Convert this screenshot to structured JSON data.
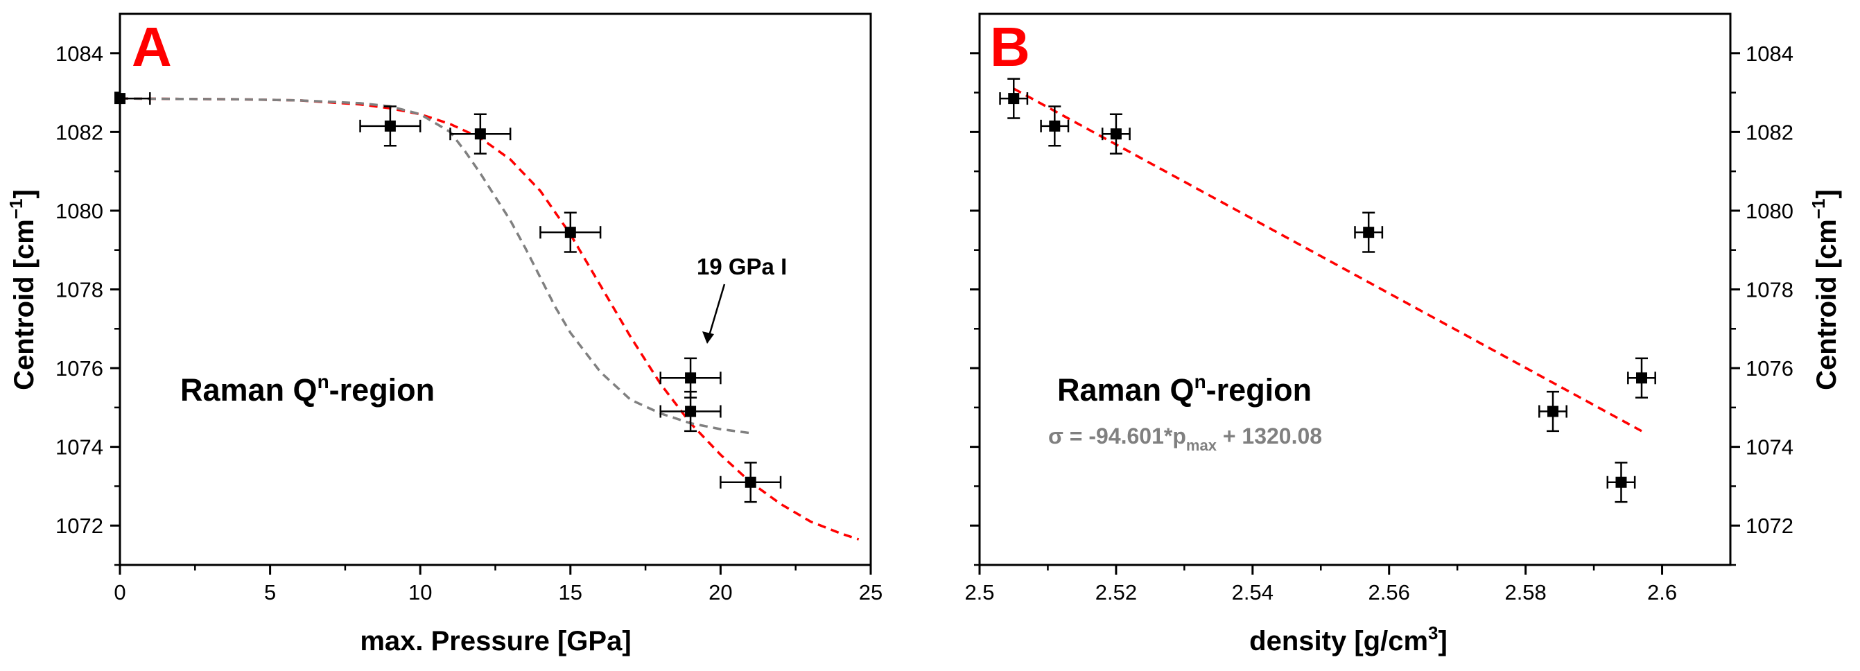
{
  "chart_data": [
    {
      "type": "scatter",
      "panel_label": "A",
      "xlabel": "max. Pressure [GPa]",
      "ylabel": "Centroid [cm",
      "ylabel_sup": "−1",
      "ylabel_end": "]",
      "xlim": [
        0,
        25
      ],
      "ylim": [
        1071,
        1085
      ],
      "xticks": [
        0,
        5,
        10,
        15,
        20,
        25
      ],
      "yticks": [
        1072,
        1074,
        1076,
        1078,
        1080,
        1082,
        1084
      ],
      "region_label": "Raman Q",
      "region_label_sup": "n",
      "region_label_end": "-region",
      "annotation": "19 GPa I",
      "points": [
        {
          "x": 0,
          "y": 1082.85,
          "xerr": 1.0,
          "yerr": 0.0
        },
        {
          "x": 9,
          "y": 1082.15,
          "xerr": 1.0,
          "yerr": 0.5
        },
        {
          "x": 12,
          "y": 1081.95,
          "xerr": 1.0,
          "yerr": 0.5
        },
        {
          "x": 15,
          "y": 1079.45,
          "xerr": 1.0,
          "yerr": 0.5
        },
        {
          "x": 19,
          "y": 1075.75,
          "xerr": 1.0,
          "yerr": 0.5
        },
        {
          "x": 19,
          "y": 1074.9,
          "xerr": 1.0,
          "yerr": 0.5
        },
        {
          "x": 21,
          "y": 1073.1,
          "xerr": 1.0,
          "yerr": 0.5
        }
      ],
      "series": [
        {
          "name": "red fit",
          "color": "#ff0000",
          "x": [
            0,
            2,
            4,
            6,
            8,
            9,
            10,
            11,
            12,
            13,
            14,
            15,
            16,
            17,
            18,
            19,
            20,
            21,
            22,
            23,
            24,
            24.6
          ],
          "y": [
            1082.85,
            1082.84,
            1082.83,
            1082.8,
            1082.7,
            1082.6,
            1082.45,
            1082.2,
            1081.85,
            1081.3,
            1080.5,
            1079.4,
            1078.1,
            1076.8,
            1075.6,
            1074.6,
            1073.8,
            1073.1,
            1072.55,
            1072.1,
            1071.8,
            1071.65
          ]
        },
        {
          "name": "gray fit",
          "color": "#808080",
          "x": [
            0,
            2,
            4,
            6,
            8,
            9,
            10,
            11,
            11.5,
            12,
            12.5,
            13,
            13.5,
            14,
            14.5,
            15,
            16,
            17,
            18,
            19,
            20,
            21
          ],
          "y": [
            1082.85,
            1082.84,
            1082.83,
            1082.8,
            1082.73,
            1082.65,
            1082.45,
            1082.0,
            1081.5,
            1080.95,
            1080.35,
            1079.75,
            1079.05,
            1078.3,
            1077.55,
            1076.9,
            1075.9,
            1075.2,
            1074.85,
            1074.6,
            1074.45,
            1074.35
          ]
        }
      ]
    },
    {
      "type": "scatter",
      "panel_label": "B",
      "xlabel": "density [g/cm",
      "xlabel_sup": "3",
      "xlabel_end": "]",
      "ylabel": "Centroid [cm",
      "ylabel_sup": "−1",
      "ylabel_end": "]",
      "xlim": [
        2.5,
        2.61
      ],
      "ylim": [
        1071,
        1085
      ],
      "xticks": [
        "2.5",
        "2.52",
        "2.54",
        "2.56",
        "2.58",
        "2.6"
      ],
      "xtick_values": [
        2.5,
        2.52,
        2.54,
        2.56,
        2.58,
        2.6
      ],
      "yticks": [
        1072,
        1074,
        1076,
        1078,
        1080,
        1082,
        1084
      ],
      "region_label": "Raman Q",
      "region_label_sup": "n",
      "region_label_end": "-region",
      "equation": "σ = -94.601*p",
      "equation_sub": "max",
      "equation_end": " + 1320.08",
      "points": [
        {
          "x": 2.505,
          "y": 1082.85,
          "xerr": 0.002,
          "yerr": 0.5
        },
        {
          "x": 2.511,
          "y": 1082.15,
          "xerr": 0.002,
          "yerr": 0.5
        },
        {
          "x": 2.52,
          "y": 1081.95,
          "xerr": 0.002,
          "yerr": 0.5
        },
        {
          "x": 2.557,
          "y": 1079.45,
          "xerr": 0.002,
          "yerr": 0.5
        },
        {
          "x": 2.584,
          "y": 1074.9,
          "xerr": 0.002,
          "yerr": 0.5
        },
        {
          "x": 2.594,
          "y": 1073.1,
          "xerr": 0.002,
          "yerr": 0.5
        },
        {
          "x": 2.597,
          "y": 1075.75,
          "xerr": 0.002,
          "yerr": 0.5
        }
      ],
      "series": [
        {
          "name": "linear fit",
          "color": "#ff0000",
          "x": [
            2.505,
            2.597
          ],
          "y": [
            1083.1,
            1074.4
          ]
        }
      ]
    }
  ]
}
